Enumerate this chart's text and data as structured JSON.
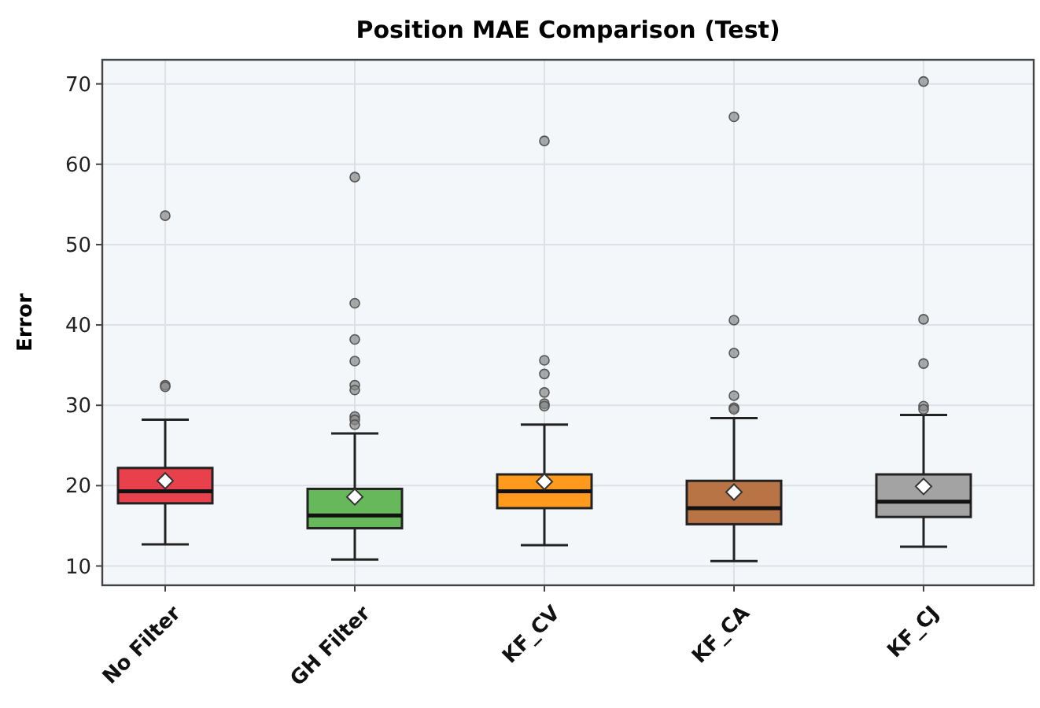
{
  "chart_data": {
    "type": "box",
    "title": "Position MAE Comparison (Test)",
    "ylabel": "Error",
    "categories": [
      "No Filter",
      "GH Filter",
      "KF_CV",
      "KF_CA",
      "KF_CJ"
    ],
    "colors": [
      "#e8414b",
      "#67b85b",
      "#ff9a1f",
      "#b87445",
      "#a3a3a3"
    ],
    "boxes": [
      {
        "low": 12.7,
        "q1": 17.8,
        "median": 19.3,
        "q3": 22.2,
        "high": 28.2,
        "mean": 20.6,
        "outliers": [
          32.5,
          32.3,
          53.6
        ]
      },
      {
        "low": 10.8,
        "q1": 14.7,
        "median": 16.3,
        "q3": 19.6,
        "high": 26.5,
        "mean": 18.6,
        "outliers": [
          58.4,
          42.7,
          38.2,
          35.5,
          32.5,
          31.9,
          28.6,
          28.2,
          27.6
        ]
      },
      {
        "low": 12.6,
        "q1": 17.2,
        "median": 19.3,
        "q3": 21.4,
        "high": 27.6,
        "mean": 20.5,
        "outliers": [
          62.9,
          35.6,
          33.9,
          31.6,
          30.2,
          29.9
        ]
      },
      {
        "low": 10.6,
        "q1": 15.2,
        "median": 17.2,
        "q3": 20.6,
        "high": 28.4,
        "mean": 19.2,
        "outliers": [
          65.9,
          40.6,
          36.5,
          31.2,
          29.7,
          29.5
        ]
      },
      {
        "low": 12.4,
        "q1": 16.1,
        "median": 18.0,
        "q3": 21.4,
        "high": 28.8,
        "mean": 19.9,
        "outliers": [
          70.3,
          40.7,
          35.2,
          29.9,
          29.5
        ]
      }
    ],
    "ylim": [
      7.6,
      73
    ],
    "yticks": [
      10,
      20,
      30,
      40,
      50,
      60,
      70
    ],
    "grid": true
  }
}
